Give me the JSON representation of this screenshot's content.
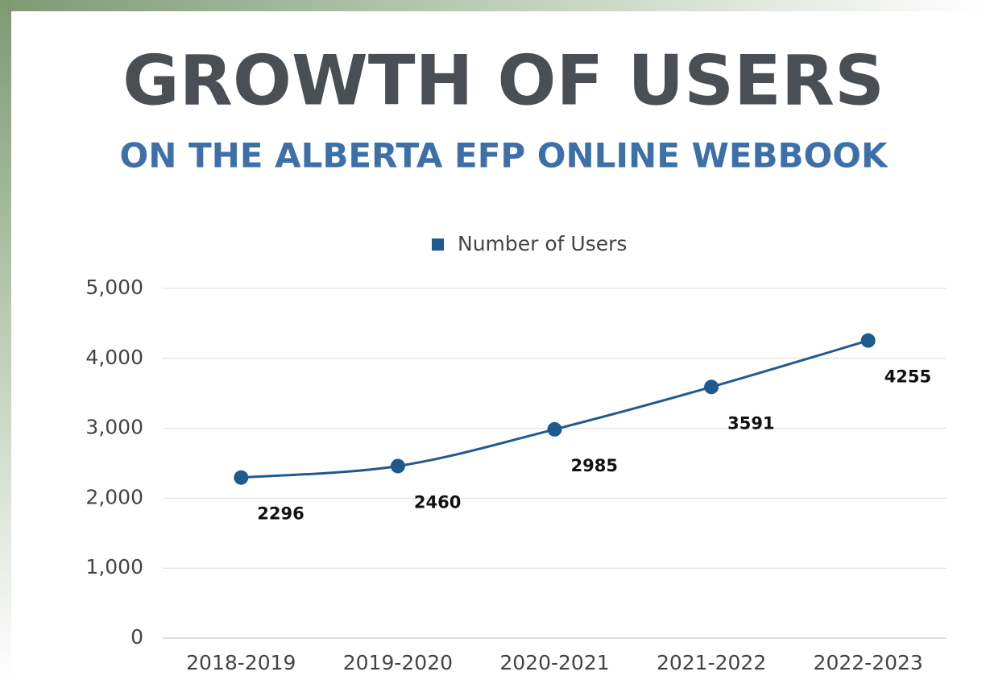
{
  "chart_data": {
    "type": "line",
    "title": "GROWTH OF USERS",
    "subtitle": "ON THE ALBERTA EFP ONLINE WEBBOOK",
    "categories": [
      "2018-2019",
      "2019-2020",
      "2020-2021",
      "2021-2022",
      "2022-2023"
    ],
    "series": [
      {
        "name": "Number of Users",
        "color": "#1f5a8f",
        "values": [
          2296,
          2460,
          2985,
          3591,
          4255
        ]
      }
    ],
    "ylim": [
      0,
      5000
    ],
    "yticks": [
      0,
      {
        "value": 1000,
        "label": "1,000"
      },
      {
        "value": 2000,
        "label": "2,000"
      },
      {
        "value": 3000,
        "label": "3,000"
      },
      {
        "value": 4000,
        "label": "4,000"
      },
      {
        "value": 5000,
        "label": "5,000"
      }
    ],
    "grid": true,
    "legend": "top"
  }
}
